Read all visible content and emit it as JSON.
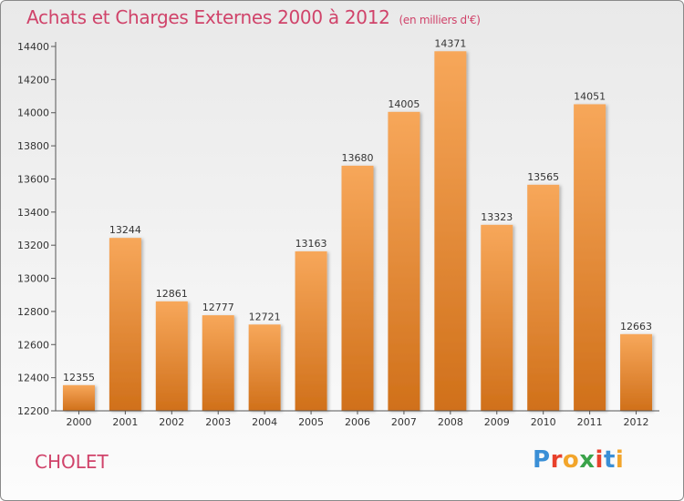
{
  "header": {
    "title": "Achats et Charges Externes 2000 à 2012",
    "subtitle": "(en milliers d'€)"
  },
  "footer": {
    "commune": "CHOLET",
    "logo_text": "Proxiti",
    "logo_colors": [
      "#3a8fd6",
      "#e8412c",
      "#f2a52b",
      "#3aa34a",
      "#e8412c",
      "#3a8fd6",
      "#f2a52b"
    ]
  },
  "colors": {
    "bar_light": "#f7a75a",
    "bar_dark": "#d0701a",
    "accent_text": "#d0436a",
    "axis": "#555555"
  },
  "chart_data": {
    "type": "bar",
    "title": "Achats et Charges Externes 2000 à 2012",
    "categories": [
      "2000",
      "2001",
      "2002",
      "2003",
      "2004",
      "2005",
      "2006",
      "2007",
      "2008",
      "2009",
      "2010",
      "2011",
      "2012"
    ],
    "values": [
      12355,
      13244,
      12861,
      12777,
      12721,
      13163,
      13680,
      14005,
      14371,
      13323,
      13565,
      14051,
      12663
    ],
    "ylim": [
      12200,
      14400
    ],
    "yticks": [
      12200,
      12400,
      12600,
      12800,
      13000,
      13200,
      13400,
      13600,
      13800,
      14000,
      14200,
      14400
    ],
    "grid": false,
    "data_labels": true
  }
}
